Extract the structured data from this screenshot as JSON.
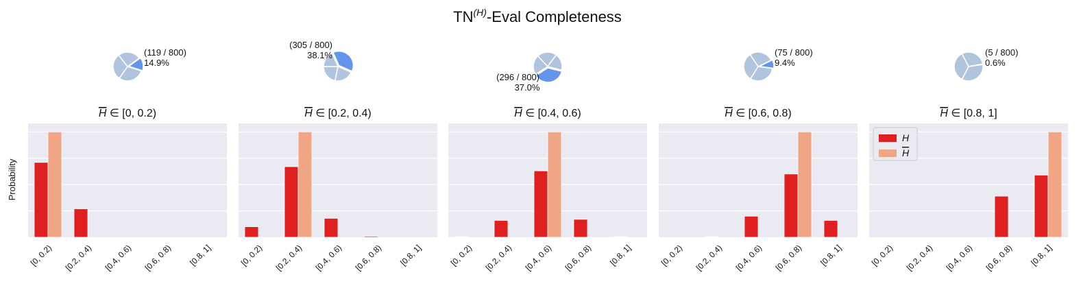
{
  "figure": {
    "title_base": "TN",
    "title_sup": "(H)",
    "title_rest": "-Eval Completeness",
    "ylabel": "Probability"
  },
  "legend": {
    "items": [
      {
        "label": "H",
        "overline": false,
        "color": "#e02020"
      },
      {
        "label": "H",
        "overline": true,
        "color": "#f0a585"
      }
    ]
  },
  "colors": {
    "plot_bg": "#eaeaf2",
    "grid": "#ffffff",
    "pie_light": "#b0c4de",
    "pie_highlight": "#6495ed"
  },
  "chart_data": [
    {
      "type": "bar",
      "title": "H̅ ∈ [0, 0.2)",
      "title_prefix": "H",
      "title_suffix": " ∈ [0, 0.2)",
      "categories": [
        "[0, 0.2)",
        "[0.2, 0.4)",
        "[0.4, 0.6)",
        "[0.6, 0.8)",
        "[0.8, 1]"
      ],
      "series": [
        {
          "name": "H",
          "values": [
            0.71,
            0.27,
            0.0,
            0.0,
            0.0
          ]
        },
        {
          "name": "H̅",
          "values": [
            1.0,
            0.0,
            0.0,
            0.0,
            0.0
          ]
        }
      ],
      "ylim": [
        0,
        1.08
      ],
      "pie": {
        "count_label": "(119 / 800)",
        "percent_label": "14.9%",
        "fraction": 0.149,
        "label_side": "right"
      }
    },
    {
      "type": "bar",
      "title": "H̅ ∈ [0.2, 0.4)",
      "title_prefix": "H",
      "title_suffix": " ∈ [0.2, 0.4)",
      "categories": [
        "[0, 0.2)",
        "[0.2, 0.4)",
        "[0.4, 0.6)",
        "[0.6, 0.8)",
        "[0.8, 1]"
      ],
      "series": [
        {
          "name": "H",
          "values": [
            0.1,
            0.67,
            0.18,
            0.01,
            0.0
          ]
        },
        {
          "name": "H̅",
          "values": [
            0.0,
            1.0,
            0.0,
            0.0,
            0.0
          ]
        }
      ],
      "ylim": [
        0,
        1.08
      ],
      "pie": {
        "count_label": "(305 / 800)",
        "percent_label": "38.1%",
        "fraction": 0.381,
        "label_side": "left"
      }
    },
    {
      "type": "bar",
      "title": "H̅ ∈ [0.4, 0.6)",
      "title_prefix": "H",
      "title_suffix": " ∈ [0.4, 0.6)",
      "categories": [
        "[0, 0.2)",
        "[0.2, 0.4)",
        "[0.4, 0.6)",
        "[0.6, 0.8)",
        "[0.8, 1]"
      ],
      "series": [
        {
          "name": "H",
          "values": [
            0.005,
            0.16,
            0.63,
            0.17,
            0.005
          ]
        },
        {
          "name": "H̅",
          "values": [
            0.0,
            0.0,
            1.0,
            0.0,
            0.0
          ]
        }
      ],
      "ylim": [
        0,
        1.08
      ],
      "pie": {
        "count_label": "(296 / 800)",
        "percent_label": "37.0%",
        "fraction": 0.37,
        "label_side": "below-left"
      }
    },
    {
      "type": "bar",
      "title": "H̅ ∈ [0.6, 0.8)",
      "title_prefix": "H",
      "title_suffix": " ∈ [0.6, 0.8)",
      "categories": [
        "[0, 0.2)",
        "[0.2, 0.4)",
        "[0.4, 0.6)",
        "[0.6, 0.8)",
        "[0.8, 1]"
      ],
      "series": [
        {
          "name": "H",
          "values": [
            0.0,
            0.005,
            0.2,
            0.6,
            0.16
          ]
        },
        {
          "name": "H̅",
          "values": [
            0.0,
            0.0,
            0.0,
            1.0,
            0.0
          ]
        }
      ],
      "ylim": [
        0,
        1.08
      ],
      "pie": {
        "count_label": "(75 / 800)",
        "percent_label": "9.4%",
        "fraction": 0.094,
        "label_side": "right"
      }
    },
    {
      "type": "bar",
      "title": "H̅ ∈ [0.8, 1]",
      "title_prefix": "H",
      "title_suffix": " ∈ [0.8, 1]",
      "categories": [
        "[0, 0.2)",
        "[0.2, 0.4)",
        "[0.4, 0.6)",
        "[0.6, 0.8)",
        "[0.8, 1]"
      ],
      "series": [
        {
          "name": "H",
          "values": [
            0.0,
            0.0,
            0.0,
            0.39,
            0.59
          ]
        },
        {
          "name": "H̅",
          "values": [
            0.0,
            0.0,
            0.0,
            0.0,
            1.0
          ]
        }
      ],
      "ylim": [
        0,
        1.08
      ],
      "pie": {
        "count_label": "(5 / 800)",
        "percent_label": "0.6%",
        "fraction": 0.006,
        "label_side": "right"
      }
    }
  ]
}
